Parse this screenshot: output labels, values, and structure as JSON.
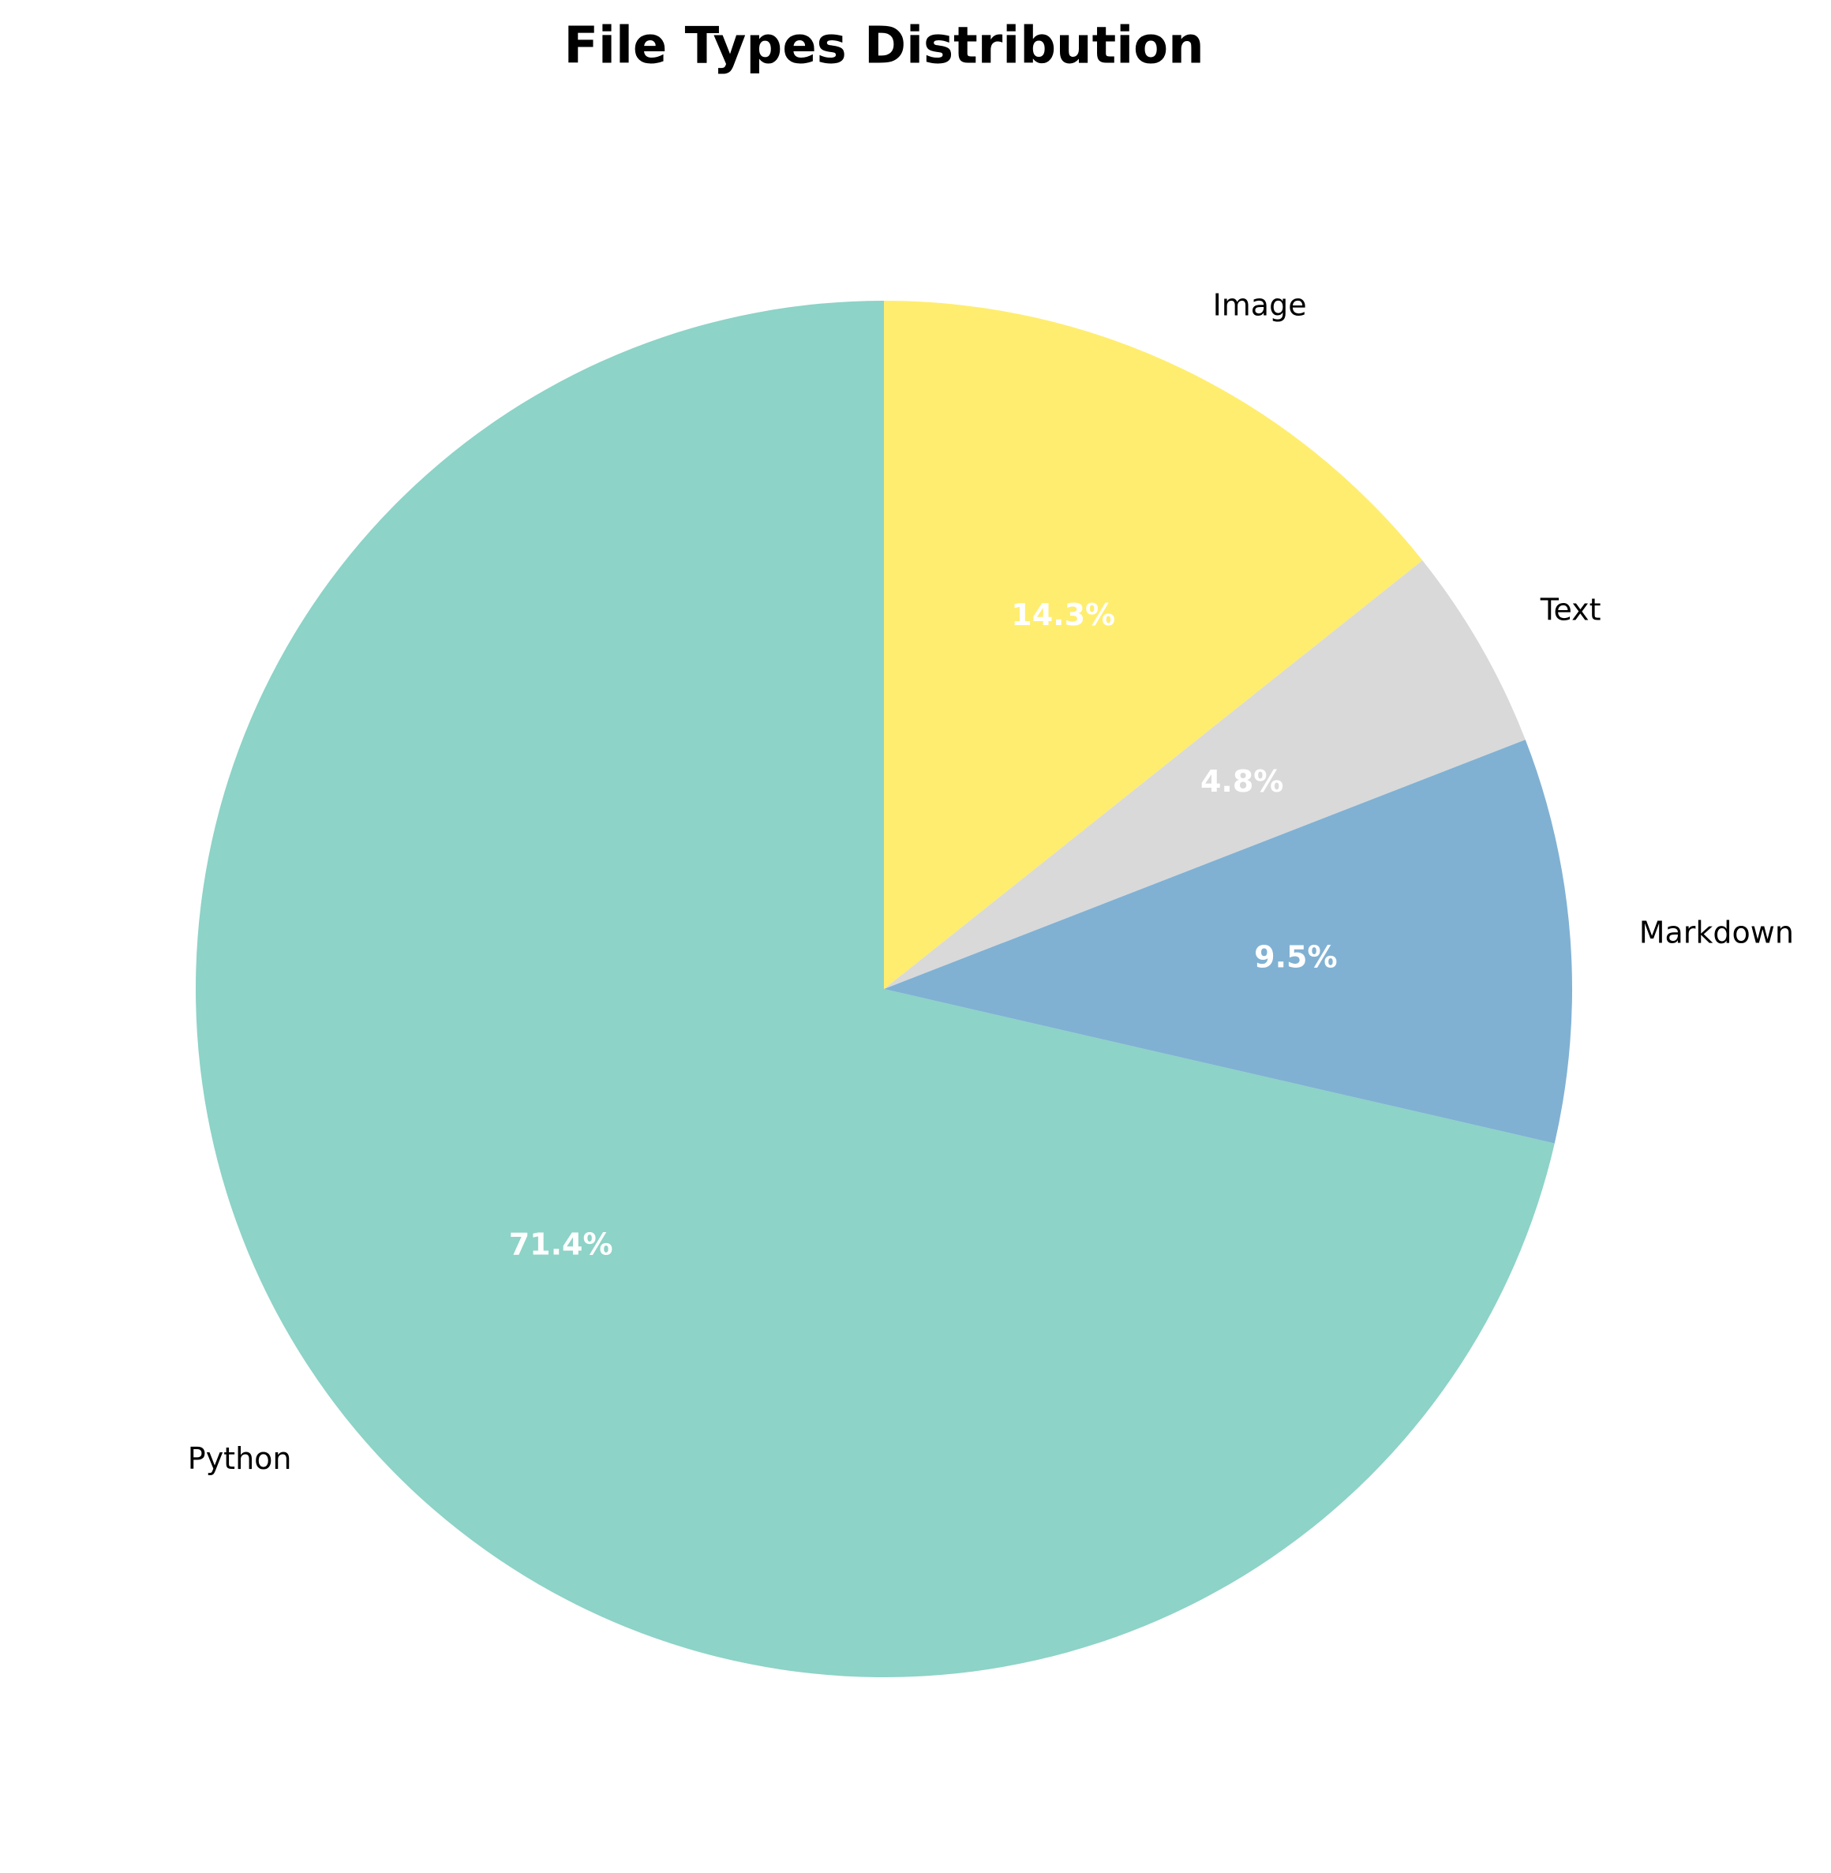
{
  "chart_data": {
    "type": "pie",
    "title": "File Types Distribution",
    "start_angle_deg": 90,
    "direction": "counterclockwise",
    "slices": [
      {
        "label": "Python",
        "value": 71.4,
        "pct_label": "71.4%",
        "color": "#8dd3c7"
      },
      {
        "label": "Markdown",
        "value": 9.5,
        "pct_label": "9.5%",
        "color": "#80b1d3"
      },
      {
        "label": "Text",
        "value": 4.8,
        "pct_label": "4.8%",
        "color": "#d9d9d9"
      },
      {
        "label": "Image",
        "value": 14.3,
        "pct_label": "14.3%",
        "color": "#ffed6f"
      }
    ]
  }
}
